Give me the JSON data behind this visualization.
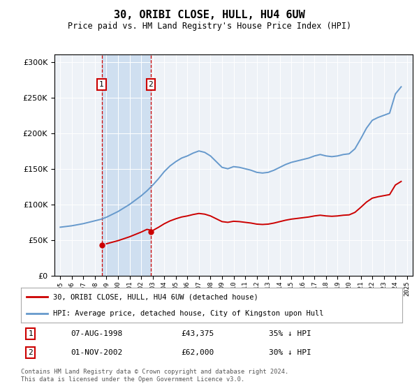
{
  "title": "30, ORIBI CLOSE, HULL, HU4 6UW",
  "subtitle": "Price paid vs. HM Land Registry's House Price Index (HPI)",
  "legend_line1": "30, ORIBI CLOSE, HULL, HU4 6UW (detached house)",
  "legend_line2": "HPI: Average price, detached house, City of Kingston upon Hull",
  "table": [
    {
      "num": "1",
      "date": "07-AUG-1998",
      "price": "£43,375",
      "pct": "35% ↓ HPI"
    },
    {
      "num": "2",
      "date": "01-NOV-2002",
      "price": "£62,000",
      "pct": "30% ↓ HPI"
    }
  ],
  "footnote1": "Contains HM Land Registry data © Crown copyright and database right 2024.",
  "footnote2": "This data is licensed under the Open Government Licence v3.0.",
  "sale1_year": 1998.58,
  "sale1_price": 43375,
  "sale2_year": 2002.83,
  "sale2_price": 62000,
  "hpi_color": "#6699cc",
  "price_color": "#cc0000",
  "background_color": "#ffffff",
  "plot_bg_color": "#eef2f7",
  "shade_color": "#ccddf0",
  "vline_color": "#cc0000",
  "xlim_left": 1994.5,
  "xlim_right": 2025.5,
  "ylim_bottom": 0,
  "ylim_top": 310000
}
